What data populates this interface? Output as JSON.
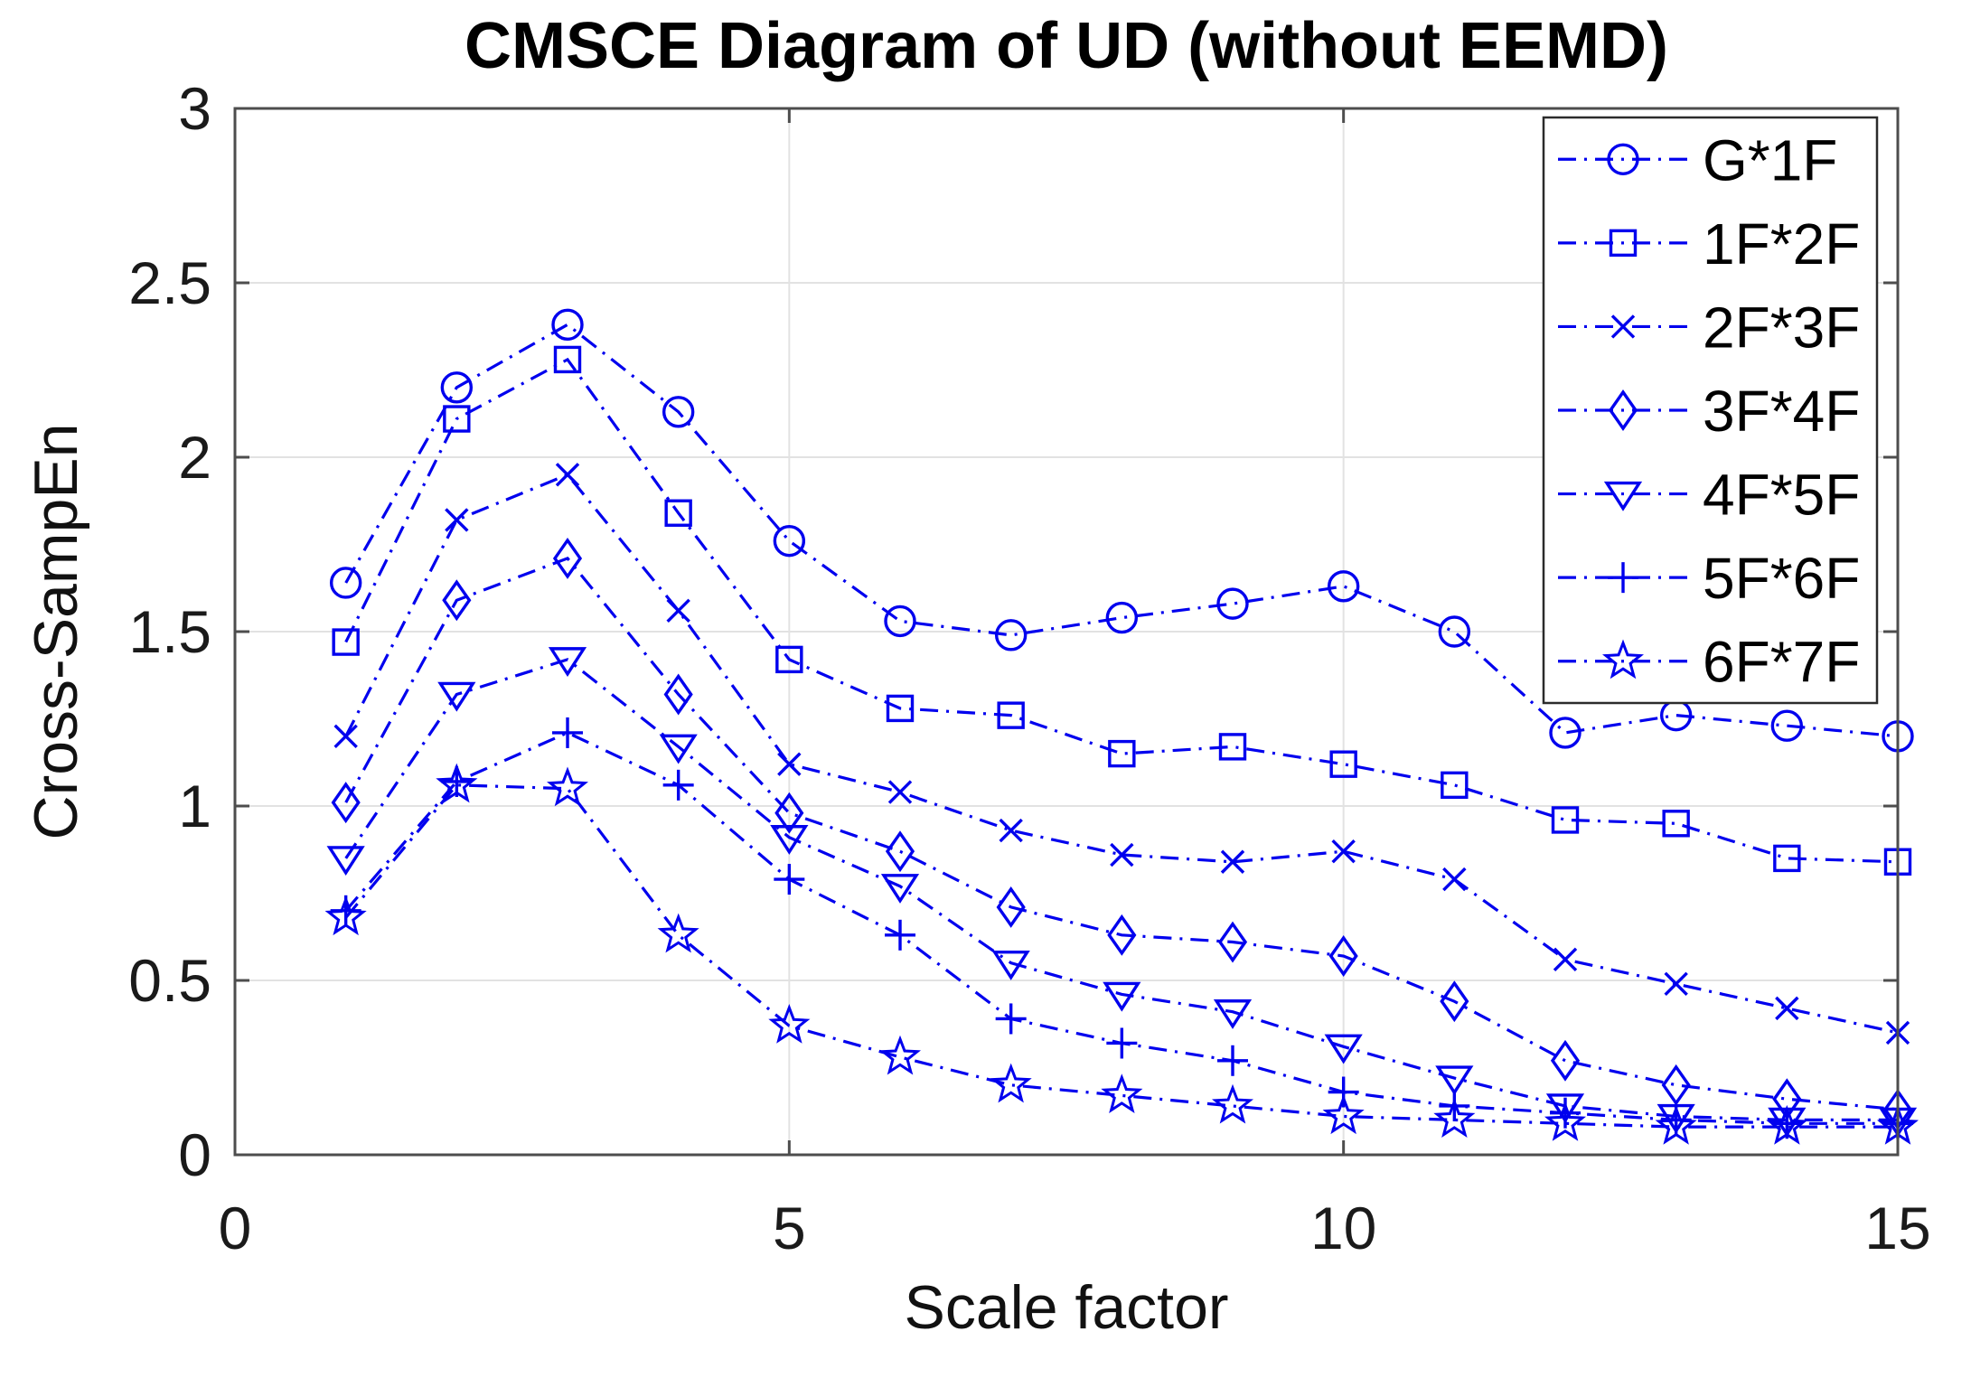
{
  "chart_data": {
    "type": "line",
    "title": "CMSCE Diagram of UD (without EEMD)",
    "xlabel": "Scale factor",
    "ylabel": "Cross-SampEn",
    "xlim": [
      0,
      15
    ],
    "ylim": [
      0,
      3
    ],
    "x_ticks": [
      0,
      5,
      10,
      15
    ],
    "y_ticks": [
      0,
      0.5,
      1,
      1.5,
      2,
      2.5,
      3
    ],
    "x_tick_labels": [
      "0",
      "5",
      "10",
      "15"
    ],
    "y_tick_labels": [
      "0",
      "0.5",
      "1",
      "1.5",
      "2",
      "2.5",
      "3"
    ],
    "grid": true,
    "legend_position": "top-right-inside",
    "line_style": "dash-dot",
    "x": [
      1,
      2,
      3,
      4,
      5,
      6,
      7,
      8,
      9,
      10,
      11,
      12,
      13,
      14,
      15
    ],
    "series": [
      {
        "name": "G*1F",
        "marker": "circle",
        "values": [
          1.64,
          2.2,
          2.38,
          2.13,
          1.76,
          1.53,
          1.49,
          1.54,
          1.58,
          1.63,
          1.5,
          1.21,
          1.26,
          1.23,
          1.2
        ]
      },
      {
        "name": "1F*2F",
        "marker": "square",
        "values": [
          1.47,
          2.11,
          2.28,
          1.84,
          1.42,
          1.28,
          1.26,
          1.15,
          1.17,
          1.12,
          1.06,
          0.96,
          0.95,
          0.85,
          0.84
        ]
      },
      {
        "name": "2F*3F",
        "marker": "x",
        "values": [
          1.2,
          1.82,
          1.95,
          1.56,
          1.12,
          1.04,
          0.93,
          0.86,
          0.84,
          0.87,
          0.79,
          0.56,
          0.49,
          0.42,
          0.35
        ]
      },
      {
        "name": "3F*4F",
        "marker": "diamond",
        "values": [
          1.01,
          1.59,
          1.71,
          1.32,
          0.98,
          0.87,
          0.71,
          0.63,
          0.61,
          0.57,
          0.44,
          0.27,
          0.2,
          0.16,
          0.13
        ]
      },
      {
        "name": "4F*5F",
        "marker": "triangle-down",
        "values": [
          0.85,
          1.32,
          1.42,
          1.17,
          0.91,
          0.77,
          0.55,
          0.46,
          0.41,
          0.31,
          0.22,
          0.14,
          0.11,
          0.1,
          0.1
        ]
      },
      {
        "name": "5F*6F",
        "marker": "plus",
        "values": [
          0.7,
          1.07,
          1.21,
          1.06,
          0.79,
          0.63,
          0.39,
          0.32,
          0.27,
          0.18,
          0.14,
          0.12,
          0.1,
          0.09,
          0.09
        ]
      },
      {
        "name": "6F*7F",
        "marker": "star",
        "values": [
          0.68,
          1.06,
          1.05,
          0.63,
          0.37,
          0.28,
          0.2,
          0.17,
          0.14,
          0.11,
          0.1,
          0.09,
          0.08,
          0.08,
          0.08
        ]
      }
    ],
    "colors": {
      "line": "#0000EE",
      "grid": "#E2E2E2",
      "axis": "#4D4D4D",
      "tick_text": "#1A1A1A",
      "legend_border": "#2B2B2B",
      "legend_text": "#000000",
      "background": "#FFFFFF"
    }
  }
}
